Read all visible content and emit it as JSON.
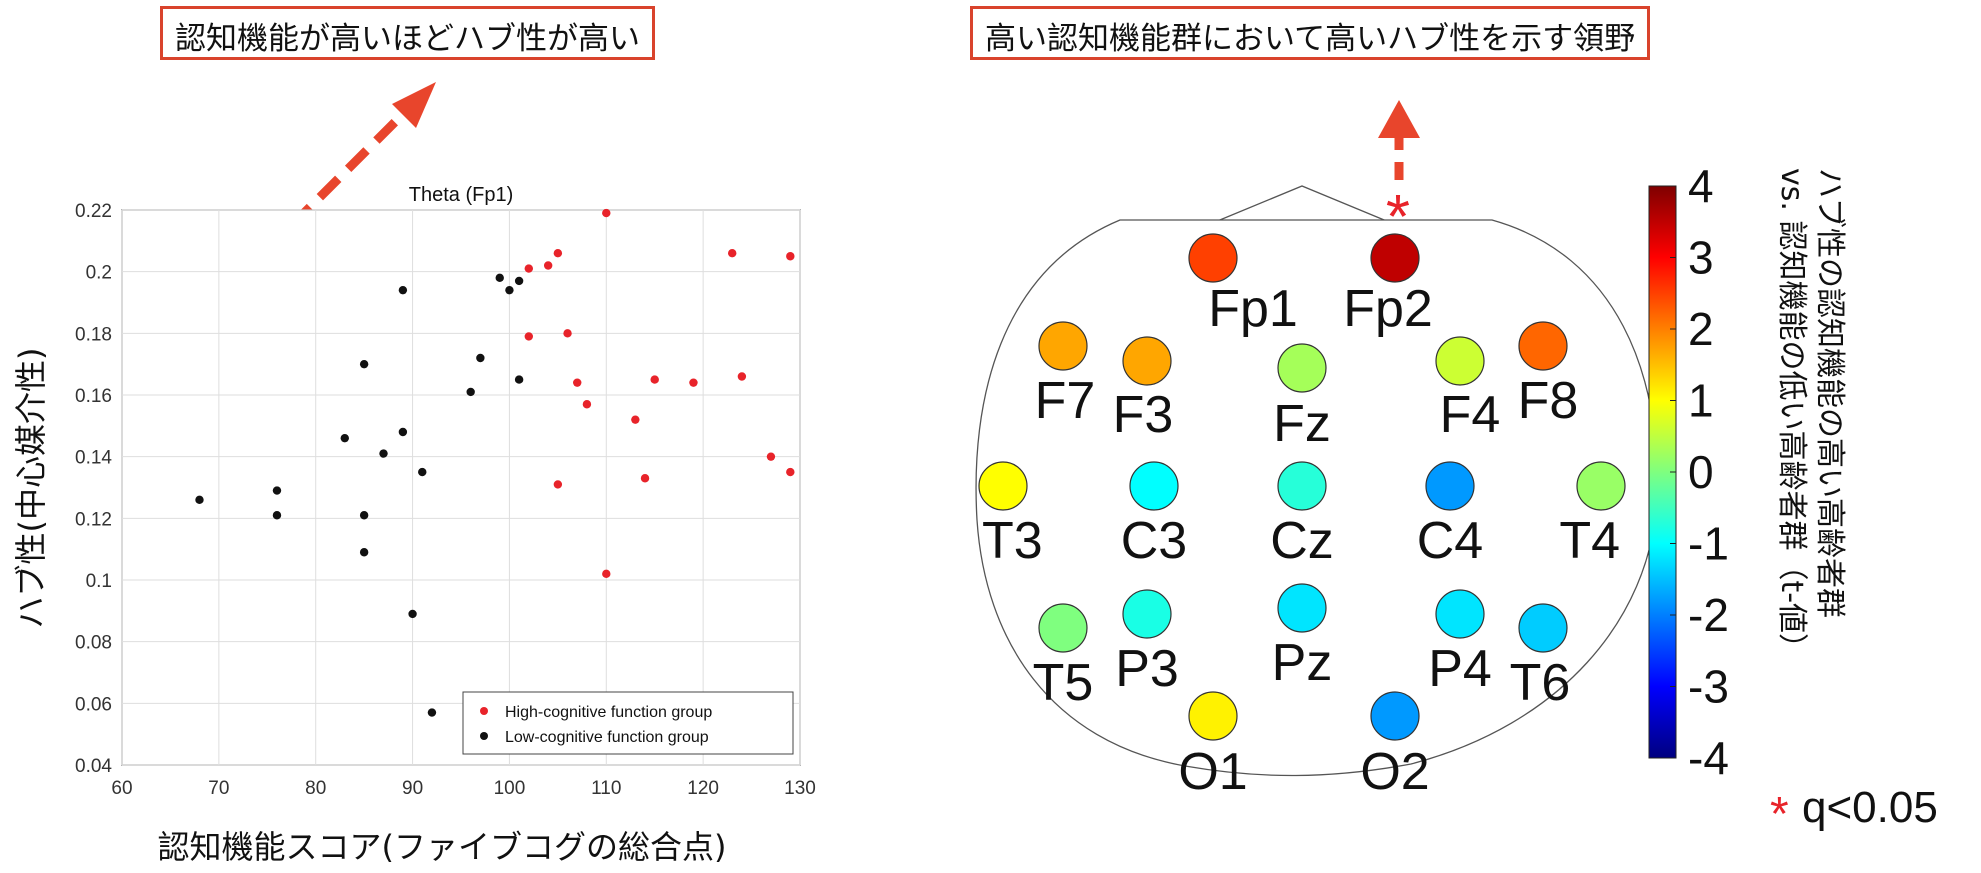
{
  "callouts": {
    "left": "認知機能が高いほどハブ性が高い",
    "right": "高い認知機能群において高いハブ性を示す領野"
  },
  "colors": {
    "accent": "#e8452c",
    "high_group": "#e8232a",
    "low_group": "#111111",
    "callout_border": "#d9432c"
  },
  "chart_data": [
    {
      "type": "scatter",
      "title": "Theta (Fp1)",
      "xlabel": "認知機能スコア(ファイブコグの総合点)",
      "ylabel": "ハブ性(中心媒介性)",
      "xlim": [
        60,
        130
      ],
      "ylim": [
        0.04,
        0.22
      ],
      "xticks": [
        60,
        70,
        80,
        90,
        100,
        110,
        120,
        130
      ],
      "yticks": [
        0.04,
        0.06,
        0.08,
        0.1,
        0.12,
        0.14,
        0.16,
        0.18,
        0.2,
        0.22
      ],
      "xtick_labels": [
        "60",
        "70",
        "80",
        "90",
        "100",
        "110",
        "120",
        "130"
      ],
      "ytick_labels": [
        "0.04",
        "0.06",
        "0.08",
        "0.1",
        "0.12",
        "0.14",
        "0.16",
        "0.18",
        "0.2",
        "0.22"
      ],
      "grid": true,
      "legend_position": "bottom-right",
      "series": [
        {
          "name": "High-cognitive function group",
          "color": "#e8232a",
          "points": [
            [
              110,
              0.219
            ],
            [
              123,
              0.206
            ],
            [
              129,
              0.205
            ],
            [
              105,
              0.206
            ],
            [
              104,
              0.202
            ],
            [
              102,
              0.201
            ],
            [
              102,
              0.179
            ],
            [
              106,
              0.18
            ],
            [
              107,
              0.164
            ],
            [
              108,
              0.157
            ],
            [
              115,
              0.165
            ],
            [
              119,
              0.164
            ],
            [
              124,
              0.166
            ],
            [
              113,
              0.152
            ],
            [
              127,
              0.14
            ],
            [
              129,
              0.135
            ],
            [
              114,
              0.133
            ],
            [
              105,
              0.131
            ],
            [
              110,
              0.102
            ]
          ]
        },
        {
          "name": "Low-cognitive function group",
          "color": "#111111",
          "points": [
            [
              68,
              0.126
            ],
            [
              76,
              0.129
            ],
            [
              76,
              0.121
            ],
            [
              83,
              0.146
            ],
            [
              85,
              0.17
            ],
            [
              85,
              0.121
            ],
            [
              85,
              0.109
            ],
            [
              87,
              0.141
            ],
            [
              89,
              0.148
            ],
            [
              89,
              0.194
            ],
            [
              90,
              0.089
            ],
            [
              91,
              0.135
            ],
            [
              92,
              0.057
            ],
            [
              96,
              0.161
            ],
            [
              97,
              0.172
            ],
            [
              99,
              0.198
            ],
            [
              100,
              0.194
            ],
            [
              101,
              0.197
            ],
            [
              101,
              0.165
            ]
          ]
        }
      ]
    },
    {
      "type": "heatmap",
      "subtype": "topographic-electrode-map",
      "colorbar": {
        "min": -4,
        "max": 4,
        "ticks": [
          4,
          3,
          2,
          1,
          0,
          -1,
          -2,
          -3,
          -4
        ],
        "tick_labels": [
          "4",
          "3",
          "2",
          "1",
          "0",
          "-1",
          "-2",
          "-3",
          "-4"
        ],
        "title_line1": "ハブ性の認知機能の高い高齢者群",
        "title_line2": "vs. 認知機能の低い高齢者群（t-値）"
      },
      "significance_label": "q<0.05",
      "significance_marker": "*",
      "electrodes": [
        {
          "label": "Fp1",
          "t": 2.5,
          "significant": false
        },
        {
          "label": "Fp2",
          "t": 3.5,
          "significant": true
        },
        {
          "label": "F7",
          "t": 1.7,
          "significant": false
        },
        {
          "label": "F3",
          "t": 1.7,
          "significant": false
        },
        {
          "label": "Fz",
          "t": 0.3,
          "significant": false
        },
        {
          "label": "F4",
          "t": 0.6,
          "significant": false
        },
        {
          "label": "F8",
          "t": 2.2,
          "significant": false
        },
        {
          "label": "T3",
          "t": 1.0,
          "significant": false
        },
        {
          "label": "C3",
          "t": -1.0,
          "significant": false
        },
        {
          "label": "Cz",
          "t": -0.7,
          "significant": false
        },
        {
          "label": "C4",
          "t": -1.8,
          "significant": false
        },
        {
          "label": "T4",
          "t": 0.2,
          "significant": false
        },
        {
          "label": "T5",
          "t": 0.0,
          "significant": false
        },
        {
          "label": "P3",
          "t": -0.8,
          "significant": false
        },
        {
          "label": "Pz",
          "t": -1.2,
          "significant": false
        },
        {
          "label": "P4",
          "t": -1.2,
          "significant": false
        },
        {
          "label": "T6",
          "t": -1.4,
          "significant": false
        },
        {
          "label": "O1",
          "t": 1.1,
          "significant": false
        },
        {
          "label": "O2",
          "t": -1.8,
          "significant": false
        }
      ]
    }
  ]
}
